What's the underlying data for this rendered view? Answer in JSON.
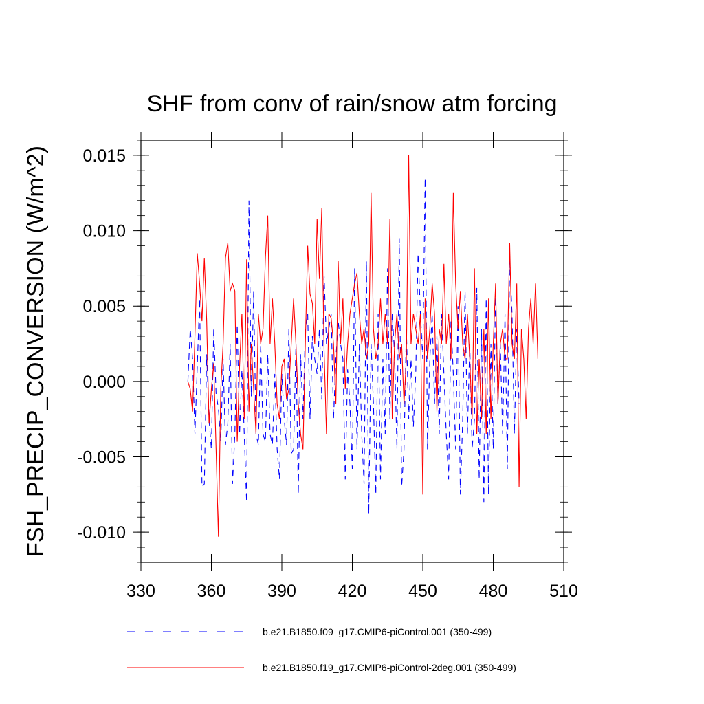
{
  "chart_data": {
    "type": "line",
    "title": "SHF from conv of rain/snow atm forcing",
    "xlabel": "",
    "ylabel": "FSH_PRECIP_CONVERSION  (W/m^2)",
    "xlim": [
      330,
      510
    ],
    "ylim": [
      -0.012,
      0.016
    ],
    "xticks": [
      330,
      360,
      390,
      420,
      450,
      480,
      510
    ],
    "xtick_labels": [
      "330",
      "360",
      "390",
      "420",
      "450",
      "480",
      "510"
    ],
    "yticks": [
      -0.01,
      -0.005,
      0.0,
      0.005,
      0.01,
      0.015
    ],
    "ytick_labels": [
      "-0.010",
      "-0.005",
      "0.000",
      "0.005",
      "0.010",
      "0.015"
    ],
    "grid": false,
    "legend_position": "bottom",
    "series": [
      {
        "name": "b.e21.B1850.f09_g17.CMIP6-piControl.001 (350-499)",
        "color": "#0000ff",
        "dash": "dashed",
        "x_start": 350,
        "values": [
          0.0,
          0.0035,
          0.0015,
          -0.0035,
          0.001,
          0.0055,
          -0.007,
          -0.0068,
          0.0018,
          -0.0025,
          -0.0045,
          0.0035,
          -0.0008,
          -0.0018,
          -0.004,
          0.0015,
          -0.0042,
          -0.0028,
          0.0025,
          -0.0068,
          -0.0035,
          0.0038,
          -0.0035,
          0.0008,
          -0.0035,
          -0.008,
          0.012,
          -0.001,
          0.006,
          -0.0035,
          -0.0042,
          0.0025,
          -0.0035,
          -0.004,
          0.0018,
          -0.0035,
          -0.0042,
          0.0005,
          -0.0045,
          -0.0065,
          0.0005,
          -0.0025,
          -0.0042,
          0.0035,
          -0.0048,
          -0.0045,
          0.0025,
          -0.0075,
          0.0018,
          -0.0025,
          0.0035,
          0.0045,
          -0.0025,
          0.003,
          0.0015,
          0.0005,
          0.0035,
          -0.0012,
          0.007,
          0.0025,
          0.0035,
          0.0045,
          -0.0025,
          0.0015,
          0.004,
          0.0025,
          0.0015,
          -0.0065,
          0.0008,
          -0.0015,
          -0.0058,
          0.0075,
          -0.0045,
          0.0025,
          -0.0035,
          -0.0068,
          0.008,
          -0.0088,
          0.0025,
          -0.0015,
          -0.0075,
          0.0045,
          -0.0065,
          0.0015,
          -0.0035,
          0.0075,
          -0.0025,
          0.0045,
          0.0018,
          -0.0045,
          0.0095,
          -0.007,
          -0.0045,
          0.0035,
          -0.0025,
          0.0015,
          -0.003,
          0.0005,
          0.0085,
          0.0045,
          0.0015,
          0.0135,
          -0.0045,
          0.0015,
          0.0045,
          -0.0015,
          0.003,
          -0.0035,
          0.0045,
          0.0005,
          -0.0035,
          -0.0065,
          0.004,
          0.0005,
          -0.0045,
          0.005,
          -0.0075,
          -0.0025,
          0.006,
          -0.0035,
          0.0025,
          -0.0045,
          -0.0025,
          0.0062,
          -0.0065,
          0.0035,
          -0.008,
          0.0055,
          -0.0075,
          0.0025,
          -0.0045,
          0.006,
          -0.0015,
          0.0025,
          -0.0035,
          0.0045,
          -0.0058,
          0.0082,
          0.0045,
          -0.0035,
          0.0035,
          -0.0015
        ]
      },
      {
        "name": "b.e21.B1850.f19_g17.CMIP6-piControl-2deg.001 (350-499)",
        "color": "#ff0000",
        "dash": "solid",
        "x_start": 350,
        "values": [
          0.0,
          -0.0005,
          -0.002,
          0.003,
          0.0085,
          0.0065,
          0.004,
          0.0082,
          0.004,
          -0.0028,
          -0.0005,
          0.0012,
          -0.0045,
          -0.0103,
          -0.0005,
          0.0025,
          0.0082,
          0.0092,
          0.006,
          0.0065,
          0.006,
          -0.004,
          0.001,
          0.0045,
          -0.0025,
          0.0081,
          -0.002,
          0.0025,
          -0.0005,
          -0.0035,
          0.0045,
          0.0025,
          0.0035,
          0.0082,
          0.011,
          0.0025,
          0.0055,
          0.0025,
          -0.0015,
          -0.0025,
          0.001,
          0.0015,
          -0.0012,
          -0.0005,
          0.0025,
          0.0055,
          0.0025,
          -0.0015,
          -0.0035,
          -0.0045,
          0.0025,
          0.009,
          0.0058,
          0.0052,
          0.0025,
          0.0108,
          0.0068,
          0.0115,
          0.002,
          -0.0035,
          0.0045,
          0.0042,
          0.0025,
          -0.0015,
          0.008,
          0.0025,
          0.0055,
          -0.0005,
          0.0025,
          0.0045,
          0.0055,
          0.0065,
          0.0072,
          0.0045,
          0.0025,
          0.0035,
          0.0015,
          0.0025,
          0.0125,
          0.0035,
          0.0015,
          0.0025,
          0.0055,
          0.0025,
          0.0045,
          0.0025,
          0.0108,
          -0.0025,
          0.0025,
          0.0045,
          0.0015,
          0.0025,
          -0.0015,
          0.0015,
          0.015,
          0.0025,
          0.0045,
          0.0035,
          0.0025,
          0.0045,
          -0.0075,
          0.0055,
          0.0015,
          0.0035,
          0.0065,
          0.0045,
          -0.002,
          0.0035,
          0.0025,
          0.0078,
          0.0025,
          0.0045,
          0.0015,
          0.0125,
          0.0065,
          0.0035,
          0.006,
          0.0025,
          0.0015,
          0.0045,
          0.0015,
          -0.0025,
          0.0075,
          -0.0035,
          0.0015,
          -0.0025,
          0.0035,
          -0.0035,
          0.0055,
          -0.0025,
          0.0025,
          0.0065,
          -0.0015,
          0.0025,
          0.0035,
          0.0015,
          0.0015,
          0.0092,
          0.0025,
          0.0015,
          0.0065,
          -0.007,
          0.0035,
          0.0015,
          -0.0025,
          0.0035,
          0.0055,
          0.0025,
          0.0065,
          0.0015
        ]
      }
    ]
  }
}
